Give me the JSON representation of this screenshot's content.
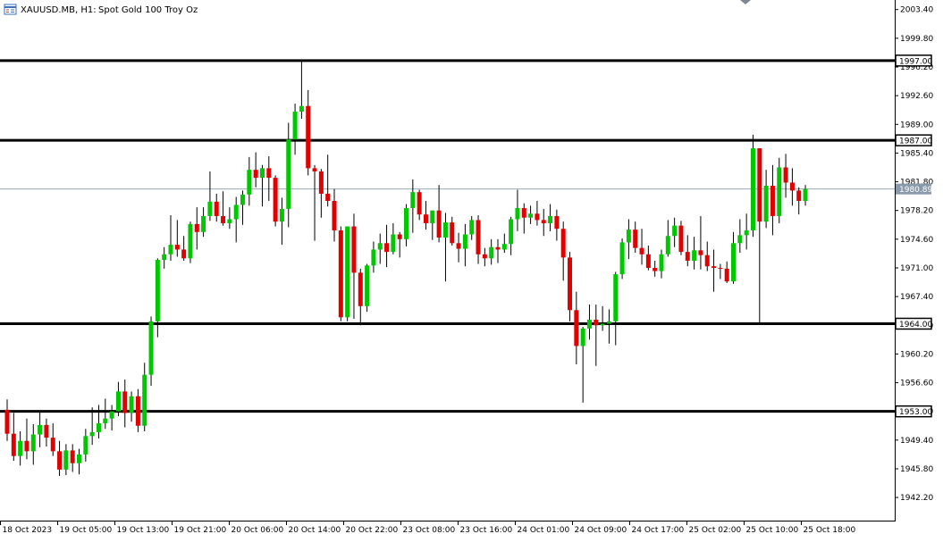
{
  "header": {
    "symbol": "XAUUSD.MB, H1:",
    "description": "Spot Gold 100 Troy Oz"
  },
  "colors": {
    "bull": "#00c800",
    "bear": "#e00000",
    "level_line": "#000000",
    "current_price_line": "#9aa8b5",
    "current_price_tag": "#8a9aaa"
  },
  "icons": {
    "symbol_icon": "window-list-icon",
    "scroll_marker": "diamond-marker-icon"
  },
  "chart_data": {
    "type": "candlestick",
    "y_ticks": [
      "2003.40",
      "1999.80",
      "1996.20",
      "1992.60",
      "1989.00",
      "1985.40",
      "1981.80",
      "1978.20",
      "1974.60",
      "1971.00",
      "1967.40",
      "1963.80",
      "1960.20",
      "1956.60",
      "1953.00",
      "1949.40",
      "1945.80",
      "1942.20"
    ],
    "x_ticks": [
      "18 Oct 2023",
      "19 Oct 05:00",
      "19 Oct 13:00",
      "19 Oct 21:00",
      "20 Oct 06:00",
      "20 Oct 14:00",
      "20 Oct 22:00",
      "23 Oct 08:00",
      "23 Oct 16:00",
      "24 Oct 01:00",
      "24 Oct 09:00",
      "24 Oct 17:00",
      "25 Oct 02:00",
      "25 Oct 10:00",
      "25 Oct 18:00"
    ],
    "ylim": [
      1939.3,
      2004.6
    ],
    "levels": [
      "1997.00",
      "1987.00",
      "1964.00",
      "1953.00"
    ],
    "current_price": "1980.89",
    "candles": [
      [
        1953.2,
        1954.5,
        1949.3,
        1950.2
      ],
      [
        1950.2,
        1952.8,
        1946.8,
        1947.4
      ],
      [
        1947.4,
        1950.5,
        1946.2,
        1949.3
      ],
      [
        1949.3,
        1952.1,
        1947.0,
        1948.0
      ],
      [
        1948.0,
        1951.4,
        1946.3,
        1950.1
      ],
      [
        1950.1,
        1953.0,
        1948.5,
        1951.3
      ],
      [
        1951.3,
        1952.1,
        1948.6,
        1949.7
      ],
      [
        1949.7,
        1951.5,
        1947.4,
        1948.0
      ],
      [
        1948.0,
        1949.3,
        1944.9,
        1945.7
      ],
      [
        1945.7,
        1948.9,
        1945.0,
        1948.1
      ],
      [
        1948.1,
        1948.9,
        1945.4,
        1946.5
      ],
      [
        1946.5,
        1948.3,
        1945.1,
        1947.6
      ],
      [
        1947.6,
        1950.8,
        1946.7,
        1949.9
      ],
      [
        1949.9,
        1953.5,
        1948.8,
        1950.4
      ],
      [
        1950.4,
        1953.8,
        1949.6,
        1951.5
      ],
      [
        1951.5,
        1954.6,
        1950.8,
        1952.1
      ],
      [
        1952.1,
        1953.8,
        1950.6,
        1953.0
      ],
      [
        1953.0,
        1956.7,
        1952.4,
        1955.5
      ],
      [
        1955.5,
        1957.0,
        1951.0,
        1952.8
      ],
      [
        1952.8,
        1955.5,
        1951.7,
        1954.9
      ],
      [
        1954.9,
        1955.8,
        1950.4,
        1951.2
      ],
      [
        1951.2,
        1959.1,
        1950.5,
        1957.6
      ],
      [
        1957.6,
        1964.9,
        1956.2,
        1964.3
      ],
      [
        1964.3,
        1972.2,
        1962.3,
        1972.0
      ],
      [
        1972.0,
        1973.6,
        1970.9,
        1972.7
      ],
      [
        1972.7,
        1977.6,
        1971.9,
        1973.9
      ],
      [
        1973.9,
        1977.0,
        1972.4,
        1973.3
      ],
      [
        1973.3,
        1975.0,
        1971.9,
        1972.2
      ],
      [
        1972.2,
        1976.8,
        1971.6,
        1976.5
      ],
      [
        1976.5,
        1978.6,
        1973.3,
        1975.5
      ],
      [
        1975.5,
        1978.6,
        1974.9,
        1977.5
      ],
      [
        1977.5,
        1983.1,
        1976.9,
        1979.3
      ],
      [
        1979.3,
        1980.3,
        1976.8,
        1977.5
      ],
      [
        1977.5,
        1980.6,
        1976.3,
        1976.6
      ],
      [
        1976.6,
        1978.6,
        1975.9,
        1977.1
      ],
      [
        1977.1,
        1979.9,
        1974.2,
        1978.9
      ],
      [
        1978.9,
        1980.7,
        1976.4,
        1980.2
      ],
      [
        1980.2,
        1984.9,
        1978.8,
        1983.3
      ],
      [
        1983.3,
        1985.5,
        1981.1,
        1982.3
      ],
      [
        1982.3,
        1983.9,
        1978.7,
        1983.5
      ],
      [
        1983.5,
        1985.0,
        1979.4,
        1982.3
      ],
      [
        1982.3,
        1982.6,
        1976.2,
        1976.8
      ],
      [
        1976.8,
        1979.8,
        1973.9,
        1978.4
      ],
      [
        1978.4,
        1989.2,
        1976.1,
        1987.1
      ],
      [
        1987.1,
        1991.6,
        1985.2,
        1990.6
      ],
      [
        1990.6,
        1997.0,
        1989.7,
        1991.3
      ],
      [
        1991.3,
        1993.3,
        1982.6,
        1983.5
      ],
      [
        1983.5,
        1983.9,
        1974.4,
        1983.1
      ],
      [
        1983.1,
        1983.4,
        1977.3,
        1980.3
      ],
      [
        1980.3,
        1985.2,
        1978.7,
        1979.4
      ],
      [
        1979.4,
        1980.9,
        1974.3,
        1975.7
      ],
      [
        1975.7,
        1976.2,
        1964.3,
        1964.8
      ],
      [
        1964.8,
        1976.2,
        1964.3,
        1976.2
      ],
      [
        1976.2,
        1977.8,
        1964.6,
        1970.4
      ],
      [
        1970.4,
        1970.9,
        1963.8,
        1966.2
      ],
      [
        1966.2,
        1971.5,
        1965.5,
        1971.3
      ],
      [
        1971.3,
        1974.3,
        1970.4,
        1973.3
      ],
      [
        1973.3,
        1975.3,
        1971.5,
        1974.1
      ],
      [
        1974.1,
        1976.4,
        1971.1,
        1973.0
      ],
      [
        1973.0,
        1976.6,
        1972.7,
        1975.2
      ],
      [
        1975.2,
        1975.5,
        1972.3,
        1974.6
      ],
      [
        1974.6,
        1979.0,
        1973.7,
        1978.5
      ],
      [
        1978.5,
        1982.1,
        1975.4,
        1980.5
      ],
      [
        1980.5,
        1980.8,
        1977.0,
        1977.7
      ],
      [
        1977.7,
        1979.4,
        1975.8,
        1976.6
      ],
      [
        1976.6,
        1978.2,
        1974.5,
        1978.2
      ],
      [
        1978.2,
        1981.4,
        1974.2,
        1974.8
      ],
      [
        1974.8,
        1977.9,
        1969.3,
        1976.7
      ],
      [
        1976.7,
        1977.4,
        1973.8,
        1974.1
      ],
      [
        1974.1,
        1975.4,
        1971.7,
        1973.4
      ],
      [
        1973.4,
        1976.5,
        1971.2,
        1975.2
      ],
      [
        1975.2,
        1977.5,
        1974.5,
        1977.0
      ],
      [
        1977.0,
        1977.6,
        1971.5,
        1972.7
      ],
      [
        1972.7,
        1973.5,
        1971.2,
        1972.2
      ],
      [
        1972.2,
        1974.6,
        1971.4,
        1973.6
      ],
      [
        1973.6,
        1974.6,
        1971.6,
        1973.3
      ],
      [
        1973.3,
        1975.3,
        1972.9,
        1974.0
      ],
      [
        1974.0,
        1977.4,
        1972.6,
        1977.1
      ],
      [
        1977.1,
        1980.8,
        1975.6,
        1978.5
      ],
      [
        1978.5,
        1979.1,
        1975.3,
        1977.3
      ],
      [
        1977.3,
        1978.8,
        1976.5,
        1977.8
      ],
      [
        1977.8,
        1979.4,
        1976.3,
        1977.0
      ],
      [
        1977.0,
        1978.4,
        1975.0,
        1976.6
      ],
      [
        1976.6,
        1979.0,
        1975.6,
        1977.5
      ],
      [
        1977.5,
        1978.3,
        1974.4,
        1975.9
      ],
      [
        1975.9,
        1976.8,
        1969.4,
        1972.3
      ],
      [
        1972.3,
        1973.0,
        1964.3,
        1965.7
      ],
      [
        1965.7,
        1968.0,
        1958.9,
        1961.2
      ],
      [
        1961.2,
        1963.6,
        1954.1,
        1963.4
      ],
      [
        1963.4,
        1966.4,
        1962.0,
        1964.5
      ],
      [
        1964.5,
        1966.4,
        1958.7,
        1963.8
      ],
      [
        1963.8,
        1966.2,
        1963.1,
        1964.0
      ],
      [
        1964.0,
        1965.8,
        1961.5,
        1964.3
      ],
      [
        1964.3,
        1970.5,
        1961.3,
        1970.2
      ],
      [
        1970.2,
        1974.7,
        1969.6,
        1974.2
      ],
      [
        1974.2,
        1977.1,
        1972.1,
        1975.8
      ],
      [
        1975.8,
        1976.8,
        1972.9,
        1973.5
      ],
      [
        1973.5,
        1975.9,
        1971.4,
        1972.7
      ],
      [
        1972.7,
        1973.8,
        1970.7,
        1971.0
      ],
      [
        1971.0,
        1971.9,
        1969.9,
        1970.6
      ],
      [
        1970.6,
        1973.3,
        1969.7,
        1972.7
      ],
      [
        1972.7,
        1977.0,
        1972.4,
        1975.0
      ],
      [
        1975.0,
        1977.3,
        1973.6,
        1976.3
      ],
      [
        1976.3,
        1976.9,
        1972.6,
        1973.0
      ],
      [
        1973.0,
        1975.1,
        1971.2,
        1971.9
      ],
      [
        1971.9,
        1974.9,
        1970.8,
        1973.2
      ],
      [
        1973.2,
        1977.5,
        1970.8,
        1972.6
      ],
      [
        1972.6,
        1974.3,
        1970.6,
        1971.2
      ],
      [
        1971.2,
        1973.3,
        1968.0,
        1971.0
      ],
      [
        1971.0,
        1971.5,
        1969.6,
        1970.9
      ],
      [
        1970.9,
        1971.8,
        1969.1,
        1969.3
      ],
      [
        1969.3,
        1975.5,
        1969.0,
        1974.1
      ],
      [
        1974.1,
        1977.1,
        1972.9,
        1975.1
      ],
      [
        1975.1,
        1977.8,
        1973.3,
        1975.7
      ],
      [
        1975.7,
        1987.7,
        1974.9,
        1986.0
      ],
      [
        1986.0,
        1986.0,
        1964.0,
        1976.8
      ],
      [
        1976.8,
        1983.3,
        1976.0,
        1981.3
      ],
      [
        1981.3,
        1983.9,
        1975.1,
        1977.5
      ],
      [
        1977.5,
        1984.8,
        1976.6,
        1983.6
      ],
      [
        1983.6,
        1985.3,
        1979.8,
        1981.7
      ],
      [
        1981.7,
        1983.5,
        1978.8,
        1980.7
      ],
      [
        1980.7,
        1981.1,
        1977.7,
        1979.4
      ],
      [
        1979.4,
        1981.4,
        1978.8,
        1980.9
      ]
    ]
  }
}
